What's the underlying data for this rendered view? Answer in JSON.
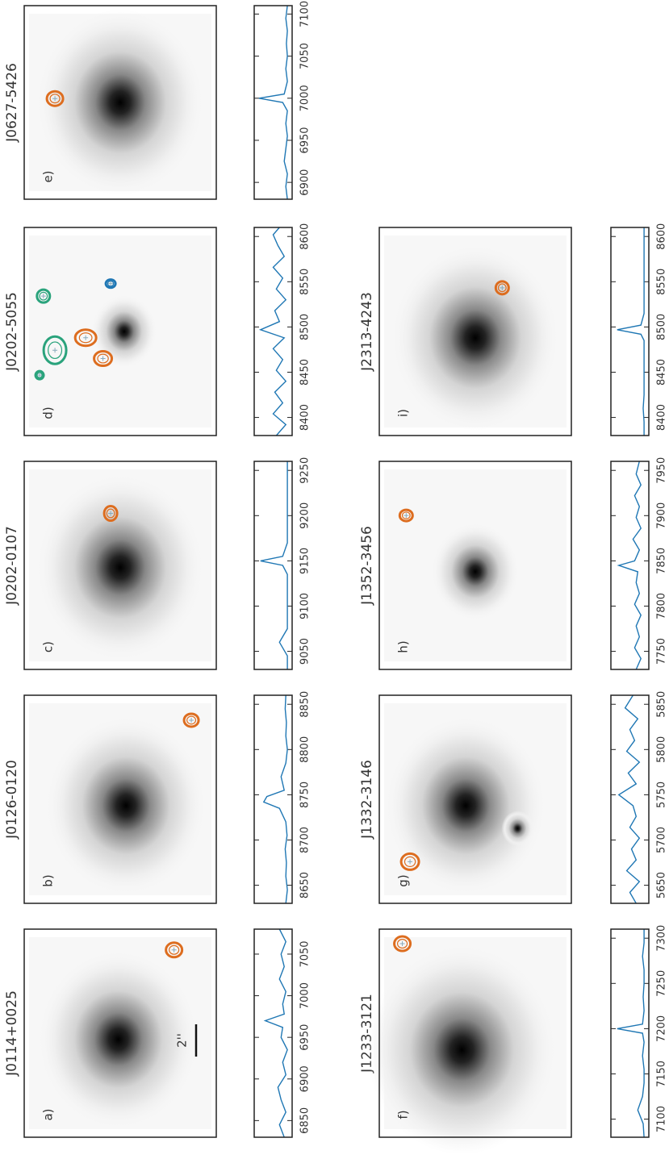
{
  "chart_data": [
    {
      "type": "line",
      "title": "J0114+0025",
      "panel_label": "a)",
      "annotation": "2''",
      "color": "#1f77b4",
      "xlim": [
        6830,
        7080
      ],
      "ylim": [
        -0.1,
        1.1
      ],
      "xticks": [
        6850,
        6900,
        6950,
        7000,
        7050
      ],
      "x": [
        6830,
        6845,
        6860,
        6875,
        6890,
        6905,
        6920,
        6935,
        6950,
        6962,
        6970,
        6978,
        6990,
        7005,
        7020,
        7035,
        7050,
        7065,
        7080
      ],
      "values": [
        0.15,
        0.3,
        0.1,
        0.25,
        0.35,
        0.1,
        0.2,
        0.05,
        0.25,
        0.2,
        0.75,
        0.15,
        0.2,
        0.1,
        0.3,
        0.15,
        0.25,
        0.1,
        0.3
      ]
    },
    {
      "type": "line",
      "title": "J0126-0120",
      "panel_label": "b)",
      "color": "#1f77b4",
      "xlim": [
        8630,
        8860
      ],
      "ylim": [
        -0.1,
        1.1
      ],
      "xticks": [
        8650,
        8700,
        8750,
        8800,
        8850
      ],
      "x": [
        8630,
        8645,
        8660,
        8675,
        8690,
        8705,
        8720,
        8735,
        8742,
        8748,
        8755,
        8770,
        8785,
        8800,
        8815,
        8830,
        8845,
        8860
      ],
      "values": [
        0.1,
        0.05,
        0.1,
        0.08,
        0.12,
        0.06,
        0.1,
        0.3,
        0.8,
        0.7,
        0.15,
        0.25,
        0.1,
        0.05,
        0.1,
        0.08,
        0.12,
        0.1
      ]
    },
    {
      "type": "line",
      "title": "J0202-0107",
      "panel_label": "c)",
      "color": "#1f77b4",
      "xlim": [
        9030,
        9260
      ],
      "ylim": [
        -0.1,
        1.1
      ],
      "xticks": [
        9050,
        9100,
        9150,
        9200,
        9250
      ],
      "x": [
        9030,
        9045,
        9060,
        9075,
        9090,
        9105,
        9120,
        9135,
        9145,
        9150,
        9155,
        9170,
        9185,
        9200,
        9215,
        9230,
        9245,
        9260
      ],
      "values": [
        0.05,
        0.05,
        0.3,
        0.05,
        0.05,
        0.05,
        0.05,
        0.05,
        0.2,
        0.9,
        0.2,
        0.05,
        0.05,
        0.05,
        0.05,
        0.05,
        0.05,
        0.05
      ]
    },
    {
      "type": "line",
      "title": "J0202-5055",
      "panel_label": "d)",
      "color": "#1f77b4",
      "xlim": [
        8380,
        8610
      ],
      "ylim": [
        -0.1,
        1.1
      ],
      "xticks": [
        8400,
        8450,
        8500,
        8550,
        8600
      ],
      "x": [
        8380,
        8392,
        8404,
        8416,
        8428,
        8440,
        8452,
        8464,
        8476,
        8488,
        8497,
        8506,
        8518,
        8530,
        8542,
        8554,
        8566,
        8578,
        8590,
        8602,
        8610
      ],
      "values": [
        0.4,
        0.1,
        0.5,
        0.2,
        0.45,
        0.1,
        0.4,
        0.2,
        0.5,
        0.15,
        0.9,
        0.3,
        0.45,
        0.1,
        0.4,
        0.2,
        0.5,
        0.15,
        0.35,
        0.5,
        0.3
      ]
    },
    {
      "type": "line",
      "title": "J0627-5426",
      "panel_label": "e)",
      "color": "#1f77b4",
      "xlim": [
        6880,
        7110
      ],
      "ylim": [
        -0.1,
        1.1
      ],
      "xticks": [
        6900,
        6950,
        7000,
        7050,
        7100
      ],
      "x": [
        6880,
        6895,
        6910,
        6925,
        6940,
        6955,
        6970,
        6985,
        6995,
        7000,
        7005,
        7020,
        7035,
        7050,
        7065,
        7080,
        7095,
        7110
      ],
      "values": [
        0.05,
        0.1,
        0.05,
        0.15,
        0.1,
        0.05,
        0.1,
        0.05,
        0.2,
        0.95,
        0.15,
        0.05,
        0.1,
        0.05,
        0.08,
        0.05,
        0.1,
        0.05
      ]
    },
    {
      "type": "line",
      "title": "J1233-3121",
      "panel_label": "f)",
      "color": "#1f77b4",
      "xlim": [
        7080,
        7310
      ],
      "ylim": [
        -0.1,
        1.1
      ],
      "xticks": [
        7100,
        7150,
        7200,
        7250,
        7300
      ],
      "x": [
        7080,
        7095,
        7110,
        7125,
        7140,
        7155,
        7170,
        7185,
        7195,
        7200,
        7205,
        7220,
        7235,
        7250,
        7265,
        7280,
        7295,
        7310
      ],
      "values": [
        0.05,
        0.08,
        0.25,
        0.1,
        0.05,
        0.05,
        0.1,
        0.05,
        0.1,
        0.9,
        0.1,
        0.05,
        0.08,
        0.05,
        0.05,
        0.1,
        0.05,
        0.05
      ]
    },
    {
      "type": "line",
      "title": "J1332-3146",
      "panel_label": "g)",
      "color": "#1f77b4",
      "xlim": [
        5630,
        5860
      ],
      "ylim": [
        -0.1,
        1.1
      ],
      "xticks": [
        5650,
        5700,
        5750,
        5800,
        5850
      ],
      "x": [
        5630,
        5642,
        5654,
        5666,
        5678,
        5690,
        5702,
        5714,
        5726,
        5738,
        5750,
        5762,
        5774,
        5786,
        5798,
        5810,
        5822,
        5834,
        5846,
        5860
      ],
      "values": [
        0.3,
        0.5,
        0.2,
        0.6,
        0.3,
        0.45,
        0.2,
        0.5,
        0.3,
        0.4,
        0.85,
        0.3,
        0.55,
        0.2,
        0.6,
        0.35,
        0.5,
        0.25,
        0.65,
        0.4
      ]
    },
    {
      "type": "line",
      "title": "J1352-3456",
      "panel_label": "h)",
      "color": "#1f77b4",
      "xlim": [
        7730,
        7960
      ],
      "ylim": [
        -0.1,
        1.1
      ],
      "xticks": [
        7750,
        7800,
        7850,
        7900,
        7950
      ],
      "x": [
        7730,
        7742,
        7754,
        7766,
        7778,
        7790,
        7802,
        7814,
        7826,
        7838,
        7845,
        7850,
        7862,
        7874,
        7886,
        7898,
        7910,
        7922,
        7934,
        7946,
        7960
      ],
      "values": [
        0.3,
        0.15,
        0.35,
        0.2,
        0.3,
        0.15,
        0.35,
        0.2,
        0.3,
        0.25,
        0.85,
        0.35,
        0.2,
        0.4,
        0.15,
        0.3,
        0.2,
        0.35,
        0.15,
        0.3,
        0.2
      ]
    },
    {
      "type": "line",
      "title": "J2313-4243",
      "panel_label": "i)",
      "color": "#1f77b4",
      "xlim": [
        8380,
        8610
      ],
      "ylim": [
        -0.1,
        1.1
      ],
      "xticks": [
        8400,
        8450,
        8500,
        8550,
        8600
      ],
      "x": [
        8380,
        8395,
        8410,
        8425,
        8440,
        8455,
        8470,
        8485,
        8492,
        8497,
        8502,
        8515,
        8530,
        8545,
        8560,
        8575,
        8590,
        8610
      ],
      "values": [
        0.05,
        0.05,
        0.08,
        0.05,
        0.05,
        0.05,
        0.05,
        0.05,
        0.15,
        0.9,
        0.15,
        0.05,
        0.05,
        0.05,
        0.05,
        0.05,
        0.05,
        0.05
      ]
    }
  ]
}
